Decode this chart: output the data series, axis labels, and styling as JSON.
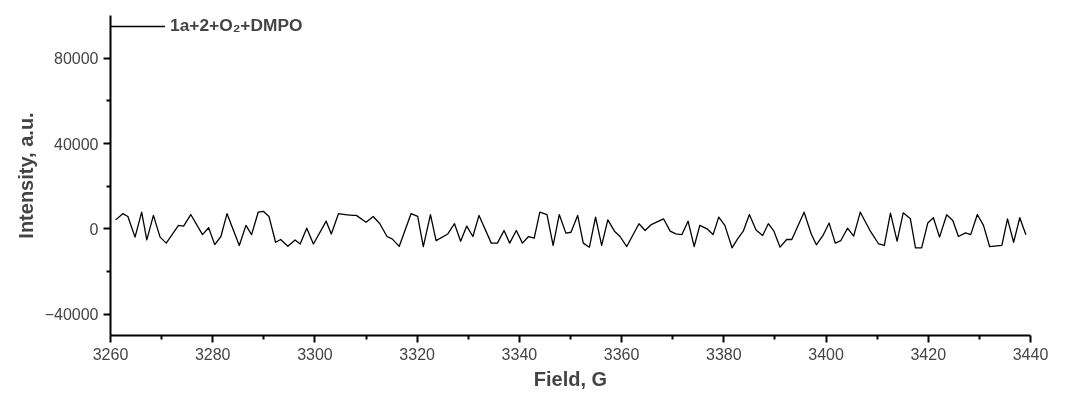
{
  "chart_data": {
    "type": "line",
    "xlabel": "Field, G",
    "ylabel": "Intensity, a.u.",
    "xlim": [
      3260,
      3440
    ],
    "ylim": [
      -50000,
      100000
    ],
    "xticks": [
      3260,
      3280,
      3300,
      3320,
      3340,
      3360,
      3380,
      3400,
      3420,
      3440
    ],
    "yticks": [
      -40000,
      0,
      40000,
      80000
    ],
    "grid": false,
    "legend": "top left",
    "marker": "none",
    "line_style": "solid",
    "series": [
      {
        "name": "1a+2+O₂+DMPO",
        "color": "#000000",
        "x": [
          3261.0,
          3262.4,
          3263.4,
          3264.8,
          3266.1,
          3267.1,
          3268.4,
          3269.7,
          3270.9,
          3273.3,
          3274.3,
          3275.7,
          3278.0,
          3279.2,
          3280.4,
          3281.6,
          3282.8,
          3285.2,
          3286.5,
          3287.6,
          3288.9,
          3289.9,
          3291.0,
          3292.3,
          3293.3,
          3294.7,
          3296.1,
          3297.1,
          3298.4,
          3299.7,
          3302.2,
          3303.2,
          3304.6,
          3305.9,
          3307.4,
          3308.1,
          3310.0,
          3311.4,
          3312.7,
          3314.1,
          3315.1,
          3316.5,
          3318.8,
          3320.1,
          3321.2,
          3322.6,
          3323.7,
          3326.0,
          3327.3,
          3328.5,
          3329.7,
          3330.9,
          3332.1,
          3334.5,
          3335.7,
          3337.0,
          3338.1,
          3339.4,
          3340.6,
          3341.8,
          3342.9,
          3344.0,
          3345.4,
          3346.6,
          3347.8,
          3349.1,
          3350.1,
          3351.4,
          3352.5,
          3353.7,
          3354.9,
          3356.1,
          3357.3,
          3358.6,
          3359.7,
          3361.0,
          3363.4,
          3364.6,
          3365.8,
          3368.2,
          3369.5,
          3370.6,
          3371.8,
          3373.0,
          3374.2,
          3375.3,
          3376.7,
          3377.9,
          3379.0,
          3380.2,
          3381.6,
          3382.7,
          3383.8,
          3385.0,
          3386.3,
          3387.6,
          3388.7,
          3389.8,
          3391.0,
          3392.3,
          3393.3,
          3395.7,
          3397.1,
          3398.1,
          3399.4,
          3400.6,
          3401.8,
          3402.9,
          3404.2,
          3405.4,
          3406.7,
          3408.6,
          3410.3,
          3411.4,
          3412.6,
          3413.9,
          3415.1,
          3416.5,
          3417.5,
          3418.7,
          3419.9,
          3421.0,
          3422.2,
          3423.6,
          3424.8,
          3425.9,
          3427.3,
          3428.3,
          3429.6,
          3430.8,
          3432.0,
          3434.4,
          3435.5,
          3436.7,
          3437.9,
          3439.1
        ],
        "values": [
          4200,
          7100,
          5800,
          -3900,
          7800,
          -5200,
          6300,
          -3900,
          -6700,
          1600,
          1300,
          6700,
          -2700,
          500,
          -7400,
          -3600,
          7100,
          -7800,
          1600,
          -2700,
          7800,
          8200,
          5800,
          -6300,
          -5000,
          -8200,
          -5200,
          -7100,
          300,
          -7100,
          3600,
          -2400,
          7100,
          6700,
          6300,
          6300,
          3100,
          5800,
          2400,
          -3600,
          -4700,
          -8200,
          7100,
          5800,
          -8300,
          6700,
          -5500,
          -2400,
          2400,
          -5800,
          1300,
          -3600,
          6300,
          -6700,
          -6700,
          -800,
          -6700,
          -800,
          -6700,
          -3600,
          -4400,
          7800,
          6700,
          -7800,
          6700,
          -2000,
          -1600,
          6300,
          -6700,
          -8600,
          5500,
          -7800,
          4200,
          -1100,
          -3600,
          -8300,
          2400,
          -800,
          2000,
          4700,
          -1100,
          -2400,
          -2700,
          3600,
          -8300,
          1600,
          0,
          -2700,
          5500,
          1600,
          -8900,
          -4700,
          -1100,
          6700,
          -500,
          -3100,
          2400,
          -1100,
          -8600,
          -5000,
          -5000,
          7800,
          -2400,
          -7500,
          -3100,
          2700,
          -6700,
          -5500,
          300,
          -3400,
          7800,
          -800,
          -7100,
          -7800,
          7400,
          -5800,
          7500,
          4700,
          -8900,
          -8900,
          2700,
          5200,
          -3900,
          6600,
          3900,
          -3600,
          -1900,
          -2700,
          6700,
          1600,
          -8300,
          -7800,
          4700,
          -6300,
          5200,
          -2800
        ]
      }
    ]
  }
}
